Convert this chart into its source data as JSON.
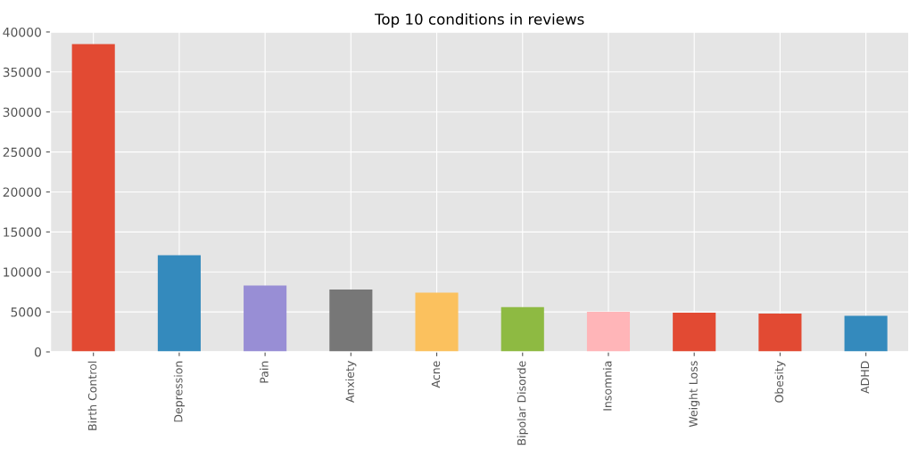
{
  "chart_data": {
    "type": "bar",
    "title": "Top 10 conditions in reviews",
    "categories": [
      "Birth Control",
      "Depression",
      "Pain",
      "Anxiety",
      "Acne",
      "Bipolar Disorde",
      "Insomnia",
      "Weight Loss",
      "Obesity",
      "ADHD"
    ],
    "values": [
      38500,
      12100,
      8300,
      7800,
      7400,
      5600,
      5000,
      4900,
      4800,
      4500
    ],
    "colors": [
      "#e24a33",
      "#348abd",
      "#988ed5",
      "#777777",
      "#fbc15e",
      "#8eba42",
      "#ffb5b8",
      "#e24a33",
      "#e24a33",
      "#348abd"
    ],
    "ylim": [
      0,
      40000
    ],
    "yticks": [
      0,
      5000,
      10000,
      15000,
      20000,
      25000,
      30000,
      35000,
      40000
    ],
    "grid": true,
    "legend": false
  }
}
